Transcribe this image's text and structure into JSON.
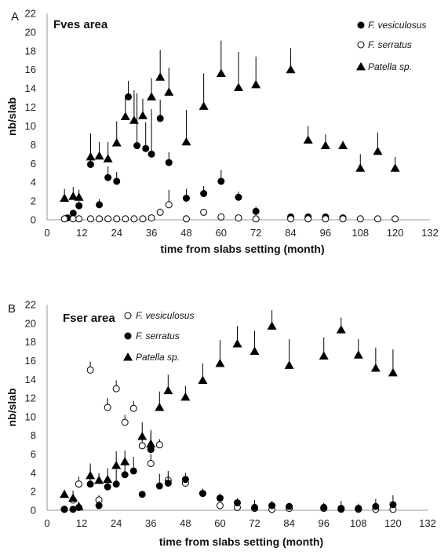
{
  "chart_data": [
    {
      "type": "scatter",
      "panel_label": "A",
      "title": "Fves area",
      "xlabel": "time from slabs setting (month)",
      "ylabel": "nb/slab",
      "xlim": [
        0,
        132
      ],
      "ylim": [
        0,
        22
      ],
      "xticks": [
        0,
        12,
        24,
        36,
        48,
        60,
        72,
        84,
        96,
        108,
        120,
        132
      ],
      "yticks": [
        0,
        2,
        4,
        6,
        8,
        10,
        12,
        14,
        16,
        18,
        20,
        22
      ],
      "legend_position": "top-right",
      "grid": false,
      "series": [
        {
          "name": "F. vesiculosus",
          "marker": "filled-circle",
          "points": [
            {
              "x": 7,
              "y": 0.2,
              "err": 0
            },
            {
              "x": 9,
              "y": 0.7,
              "err": 0.3
            },
            {
              "x": 11,
              "y": 1.5,
              "err": 0.5
            },
            {
              "x": 15,
              "y": 5.9,
              "err": 3.3
            },
            {
              "x": 18,
              "y": 1.6,
              "err": 0.6
            },
            {
              "x": 21,
              "y": 4.5,
              "err": 1.2
            },
            {
              "x": 24,
              "y": 4.1,
              "err": 1.0
            },
            {
              "x": 28,
              "y": 13.1,
              "err": 1.7
            },
            {
              "x": 31,
              "y": 7.9,
              "err": 5.6
            },
            {
              "x": 34,
              "y": 7.6,
              "err": 2.8
            },
            {
              "x": 36,
              "y": 7.0,
              "err": 4.8
            },
            {
              "x": 39,
              "y": 10.8,
              "err": 2.0
            },
            {
              "x": 42,
              "y": 6.1,
              "err": 1.1
            },
            {
              "x": 48,
              "y": 2.3,
              "err": 1.0
            },
            {
              "x": 54,
              "y": 2.8,
              "err": 0.8
            },
            {
              "x": 60,
              "y": 4.1,
              "err": 1.2
            },
            {
              "x": 66,
              "y": 2.4,
              "err": 0.6
            },
            {
              "x": 72,
              "y": 0.9,
              "err": 0.5
            },
            {
              "x": 84,
              "y": 0.3,
              "err": 0.2
            },
            {
              "x": 90,
              "y": 0.3,
              "err": 0.2
            },
            {
              "x": 96,
              "y": 0.3,
              "err": 0.2
            },
            {
              "x": 102,
              "y": 0.2,
              "err": 0.1
            }
          ]
        },
        {
          "name": "F. serratus",
          "marker": "open-circle",
          "points": [
            {
              "x": 6,
              "y": 0.1,
              "err": 0
            },
            {
              "x": 9,
              "y": 0.1,
              "err": 0
            },
            {
              "x": 11,
              "y": 0.1,
              "err": 0
            },
            {
              "x": 15,
              "y": 0.1,
              "err": 0
            },
            {
              "x": 18,
              "y": 0.1,
              "err": 0
            },
            {
              "x": 21,
              "y": 0.1,
              "err": 0
            },
            {
              "x": 24,
              "y": 0.1,
              "err": 0
            },
            {
              "x": 27,
              "y": 0.1,
              "err": 0
            },
            {
              "x": 30,
              "y": 0.1,
              "err": 0
            },
            {
              "x": 33,
              "y": 0.1,
              "err": 0
            },
            {
              "x": 36,
              "y": 0.2,
              "err": 0.2
            },
            {
              "x": 39,
              "y": 0.8,
              "err": 0.4
            },
            {
              "x": 42,
              "y": 1.6,
              "err": 1.6
            },
            {
              "x": 48,
              "y": 0.1,
              "err": 0
            },
            {
              "x": 54,
              "y": 0.8,
              "err": 0.3
            },
            {
              "x": 60,
              "y": 0.3,
              "err": 0
            },
            {
              "x": 66,
              "y": 0.2,
              "err": 0
            },
            {
              "x": 72,
              "y": 0.1,
              "err": 0
            },
            {
              "x": 84,
              "y": 0.1,
              "err": 0
            },
            {
              "x": 90,
              "y": 0.1,
              "err": 0
            },
            {
              "x": 96,
              "y": 0.1,
              "err": 0
            },
            {
              "x": 102,
              "y": 0.1,
              "err": 0
            },
            {
              "x": 108,
              "y": 0.1,
              "err": 0
            },
            {
              "x": 114,
              "y": 0.1,
              "err": 0
            },
            {
              "x": 120,
              "y": 0.1,
              "err": 0
            }
          ]
        },
        {
          "name": "Patella sp.",
          "marker": "filled-triangle",
          "points": [
            {
              "x": 6,
              "y": 2.3,
              "err": 1.0
            },
            {
              "x": 9,
              "y": 2.5,
              "err": 1.0
            },
            {
              "x": 11,
              "y": 2.4,
              "err": 0.8
            },
            {
              "x": 15,
              "y": 6.7,
              "err": 2.5
            },
            {
              "x": 18,
              "y": 6.8,
              "err": 1.5
            },
            {
              "x": 21,
              "y": 6.5,
              "err": 1.8
            },
            {
              "x": 24,
              "y": 8.2,
              "err": 2.3
            },
            {
              "x": 27,
              "y": 11.0,
              "err": 2.0
            },
            {
              "x": 30,
              "y": 10.6,
              "err": 3.2
            },
            {
              "x": 33,
              "y": 11.1,
              "err": 1.8
            },
            {
              "x": 36,
              "y": 13.1,
              "err": 2.0
            },
            {
              "x": 39,
              "y": 15.2,
              "err": 2.9
            },
            {
              "x": 42,
              "y": 13.6,
              "err": 2.6
            },
            {
              "x": 48,
              "y": 8.3,
              "err": 3.4
            },
            {
              "x": 54,
              "y": 12.1,
              "err": 3.5
            },
            {
              "x": 60,
              "y": 15.6,
              "err": 3.5
            },
            {
              "x": 66,
              "y": 14.1,
              "err": 3.8
            },
            {
              "x": 72,
              "y": 14.4,
              "err": 3.0
            },
            {
              "x": 84,
              "y": 16.0,
              "err": 2.3
            },
            {
              "x": 90,
              "y": 8.5,
              "err": 1.5
            },
            {
              "x": 96,
              "y": 7.9,
              "err": 1.2
            },
            {
              "x": 102,
              "y": 7.9,
              "err": 0.5
            },
            {
              "x": 108,
              "y": 5.5,
              "err": 1.5
            },
            {
              "x": 114,
              "y": 7.3,
              "err": 2.0
            },
            {
              "x": 120,
              "y": 5.5,
              "err": 1.2
            }
          ]
        }
      ]
    },
    {
      "type": "scatter",
      "panel_label": "B",
      "title": "Fser area",
      "xlabel": "time from slabs setting (month)",
      "ylabel": "nb/slab",
      "xlim": [
        0,
        132
      ],
      "ylim": [
        0,
        22
      ],
      "xticks": [
        0,
        12,
        24,
        36,
        48,
        60,
        72,
        84,
        96,
        108,
        120,
        132
      ],
      "yticks": [
        0,
        2,
        4,
        6,
        8,
        10,
        12,
        14,
        16,
        18,
        20,
        22
      ],
      "legend_position": "top-left",
      "grid": false,
      "series": [
        {
          "name": "F. vesiculosus",
          "marker": "open-circle",
          "points": [
            {
              "x": 6,
              "y": 0.1,
              "err": 0
            },
            {
              "x": 9,
              "y": 1.1,
              "err": 0.5
            },
            {
              "x": 11,
              "y": 2.8,
              "err": 0.8
            },
            {
              "x": 15,
              "y": 15.0,
              "err": 0.9
            },
            {
              "x": 18,
              "y": 1.1,
              "err": 0.5
            },
            {
              "x": 21,
              "y": 11.0,
              "err": 1.0
            },
            {
              "x": 24,
              "y": 13.0,
              "err": 0.9
            },
            {
              "x": 27,
              "y": 9.4,
              "err": 0.8
            },
            {
              "x": 30,
              "y": 10.9,
              "err": 0.8
            },
            {
              "x": 33,
              "y": 6.9,
              "err": 0.7
            },
            {
              "x": 36,
              "y": 5.0,
              "err": 1.0
            },
            {
              "x": 39,
              "y": 7.0,
              "err": 0.6
            },
            {
              "x": 42,
              "y": 3.2,
              "err": 0.5
            },
            {
              "x": 48,
              "y": 2.9,
              "err": 0.6
            },
            {
              "x": 54,
              "y": 1.8,
              "err": 0.5
            },
            {
              "x": 60,
              "y": 0.5,
              "err": 0
            },
            {
              "x": 66,
              "y": 0.3,
              "err": 0
            },
            {
              "x": 72,
              "y": 0.2,
              "err": 0
            },
            {
              "x": 78,
              "y": 0.1,
              "err": 0
            },
            {
              "x": 84,
              "y": 0.2,
              "err": 0
            },
            {
              "x": 96,
              "y": 0.2,
              "err": 0
            },
            {
              "x": 102,
              "y": 0.1,
              "err": 0
            },
            {
              "x": 108,
              "y": 0.1,
              "err": 0
            },
            {
              "x": 114,
              "y": 0.1,
              "err": 0
            },
            {
              "x": 120,
              "y": 0.1,
              "err": 0
            }
          ]
        },
        {
          "name": "F. serratus",
          "marker": "filled-circle",
          "points": [
            {
              "x": 6,
              "y": 0.1,
              "err": 0
            },
            {
              "x": 9,
              "y": 0.1,
              "err": 0
            },
            {
              "x": 11,
              "y": 0.3,
              "err": 0.3
            },
            {
              "x": 15,
              "y": 2.8,
              "err": 1.8
            },
            {
              "x": 18,
              "y": 0.5,
              "err": 0.5
            },
            {
              "x": 21,
              "y": 2.5,
              "err": 1.2
            },
            {
              "x": 24,
              "y": 2.8,
              "err": 1.6
            },
            {
              "x": 27,
              "y": 3.8,
              "err": 1.3
            },
            {
              "x": 30,
              "y": 4.2,
              "err": 1.5
            },
            {
              "x": 33,
              "y": 1.7,
              "err": 0
            },
            {
              "x": 36,
              "y": 6.5,
              "err": 1.8
            },
            {
              "x": 39,
              "y": 2.6,
              "err": 1.3
            },
            {
              "x": 42,
              "y": 2.9,
              "err": 1.3
            },
            {
              "x": 48,
              "y": 3.3,
              "err": 0.7
            },
            {
              "x": 54,
              "y": 1.8,
              "err": 0.5
            },
            {
              "x": 60,
              "y": 1.3,
              "err": 0.5
            },
            {
              "x": 66,
              "y": 0.8,
              "err": 0.5
            },
            {
              "x": 72,
              "y": 0.3,
              "err": 0.8
            },
            {
              "x": 78,
              "y": 0.5,
              "err": 0.5
            },
            {
              "x": 84,
              "y": 0.4,
              "err": 0.4
            },
            {
              "x": 96,
              "y": 0.3,
              "err": 0.5
            },
            {
              "x": 102,
              "y": 0.2,
              "err": 0.8
            },
            {
              "x": 108,
              "y": 0.2,
              "err": 0.5
            },
            {
              "x": 114,
              "y": 0.4,
              "err": 0.8
            },
            {
              "x": 120,
              "y": 0.6,
              "err": 1.0
            }
          ]
        },
        {
          "name": "Patella sp.",
          "marker": "filled-triangle",
          "points": [
            {
              "x": 6,
              "y": 1.7,
              "err": 0.5
            },
            {
              "x": 9,
              "y": 1.3,
              "err": 0.8
            },
            {
              "x": 11,
              "y": 0.4,
              "err": 0.5
            },
            {
              "x": 15,
              "y": 3.7,
              "err": 1.3
            },
            {
              "x": 18,
              "y": 3.2,
              "err": 0.8
            },
            {
              "x": 21,
              "y": 3.3,
              "err": 1.2
            },
            {
              "x": 24,
              "y": 4.8,
              "err": 1.5
            },
            {
              "x": 27,
              "y": 5.2,
              "err": 1.2
            },
            {
              "x": 33,
              "y": 7.9,
              "err": 1.5
            },
            {
              "x": 36,
              "y": 7.1,
              "err": 1.5
            },
            {
              "x": 39,
              "y": 11.0,
              "err": 1.7
            },
            {
              "x": 42,
              "y": 12.8,
              "err": 1.7
            },
            {
              "x": 48,
              "y": 12.1,
              "err": 1.2
            },
            {
              "x": 54,
              "y": 13.9,
              "err": 1.8
            },
            {
              "x": 60,
              "y": 15.7,
              "err": 2.5
            },
            {
              "x": 66,
              "y": 17.8,
              "err": 1.9
            },
            {
              "x": 72,
              "y": 17.0,
              "err": 2.2
            },
            {
              "x": 78,
              "y": 19.7,
              "err": 1.7
            },
            {
              "x": 84,
              "y": 15.5,
              "err": 2.8
            },
            {
              "x": 96,
              "y": 16.5,
              "err": 2.0
            },
            {
              "x": 102,
              "y": 19.3,
              "err": 1.3
            },
            {
              "x": 108,
              "y": 16.6,
              "err": 1.7
            },
            {
              "x": 114,
              "y": 15.2,
              "err": 2.2
            },
            {
              "x": 120,
              "y": 14.7,
              "err": 2.5
            }
          ]
        }
      ]
    }
  ]
}
